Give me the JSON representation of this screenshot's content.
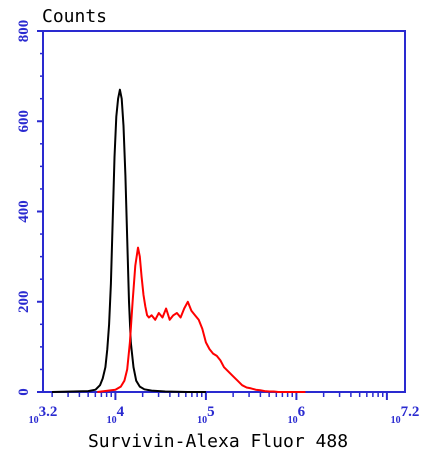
{
  "chart_data": {
    "type": "line",
    "ylabel": "Counts",
    "xlabel": "Survivin-Alexa Fluor 488",
    "x_scale": "log",
    "xlim_log10": [
      3.2,
      7.2
    ],
    "ylim": [
      0,
      800
    ],
    "y_ticks": [
      0,
      200,
      400,
      600,
      800
    ],
    "x_ticks": [
      {
        "log10": 3.2,
        "base": "10",
        "exp": "3.2"
      },
      {
        "log10": 4,
        "base": "10",
        "exp": "4"
      },
      {
        "log10": 5,
        "base": "10",
        "exp": "5"
      },
      {
        "log10": 6,
        "base": "10",
        "exp": "6"
      },
      {
        "log10": 7.2,
        "base": "10",
        "exp": "7.2"
      }
    ],
    "axis_color": "#2a2ad0",
    "series": [
      {
        "color": "#000000",
        "log10_x": [
          3.3,
          3.7,
          3.78,
          3.83,
          3.86,
          3.89,
          3.91,
          3.93,
          3.95,
          3.97,
          3.99,
          4.01,
          4.03,
          4.05,
          4.07,
          4.09,
          4.11,
          4.13,
          4.15,
          4.17,
          4.2,
          4.23,
          4.27,
          4.32,
          4.4,
          4.55,
          4.8,
          5.0
        ],
        "y": [
          0,
          2,
          5,
          15,
          30,
          55,
          95,
          150,
          240,
          380,
          520,
          610,
          650,
          670,
          650,
          590,
          480,
          340,
          200,
          110,
          55,
          25,
          12,
          6,
          3,
          1,
          0,
          0
        ]
      },
      {
        "color": "#ff0000",
        "log10_x": [
          3.8,
          4.0,
          4.06,
          4.1,
          4.13,
          4.16,
          4.19,
          4.22,
          4.25,
          4.27,
          4.29,
          4.31,
          4.33,
          4.35,
          4.37,
          4.4,
          4.44,
          4.48,
          4.52,
          4.56,
          4.6,
          4.64,
          4.68,
          4.72,
          4.76,
          4.8,
          4.84,
          4.88,
          4.92,
          4.96,
          5.0,
          5.04,
          5.08,
          5.12,
          5.16,
          5.2,
          5.25,
          5.3,
          5.35,
          5.4,
          5.45,
          5.5,
          5.55,
          5.6,
          5.65,
          5.7,
          5.75,
          5.8,
          5.85,
          5.9,
          5.95,
          6.0,
          6.1
        ],
        "y": [
          0,
          5,
          12,
          25,
          50,
          110,
          200,
          280,
          320,
          300,
          255,
          215,
          190,
          170,
          165,
          170,
          160,
          175,
          165,
          185,
          160,
          170,
          175,
          165,
          185,
          200,
          180,
          170,
          160,
          140,
          110,
          95,
          85,
          80,
          70,
          55,
          45,
          35,
          25,
          15,
          10,
          8,
          5,
          4,
          2,
          1,
          1,
          0,
          0,
          0,
          0,
          0,
          0
        ]
      }
    ]
  }
}
